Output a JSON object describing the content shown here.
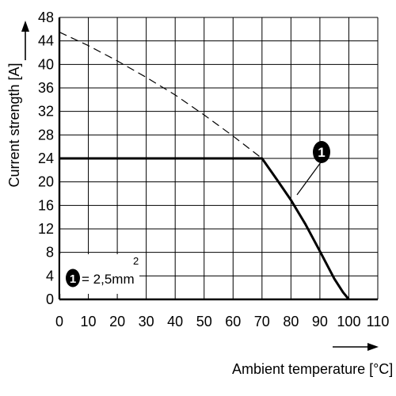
{
  "chart_data": {
    "type": "line",
    "xlabel": "Ambient temperature [°C]",
    "ylabel": "Current strength [A]",
    "xlim": [
      0,
      110
    ],
    "ylim": [
      0,
      48
    ],
    "x_ticks": [
      "0",
      "10",
      "20",
      "30",
      "40",
      "50",
      "60",
      "70",
      "80",
      "90",
      "100",
      "110"
    ],
    "y_ticks": [
      "0",
      "4",
      "8",
      "12",
      "16",
      "20",
      "24",
      "28",
      "32",
      "36",
      "40",
      "44",
      "48"
    ],
    "grid": true,
    "series": [
      {
        "style": "dashed",
        "x": [
          0,
          10,
          20,
          30,
          40,
          50,
          60,
          70
        ],
        "y": [
          45.5,
          43.2,
          40.6,
          37.8,
          34.8,
          31.4,
          27.8,
          24
        ]
      },
      {
        "style": "solid",
        "x": [
          0,
          70,
          75,
          80,
          85,
          90,
          95,
          98,
          100
        ],
        "y": [
          24,
          24,
          20.5,
          16.9,
          12.8,
          8.2,
          3.5,
          1.2,
          0
        ]
      }
    ],
    "annotation": {
      "label": "1"
    },
    "legend": {
      "marker": "1",
      "text": "= 2,5mm",
      "superscript": "2"
    }
  }
}
